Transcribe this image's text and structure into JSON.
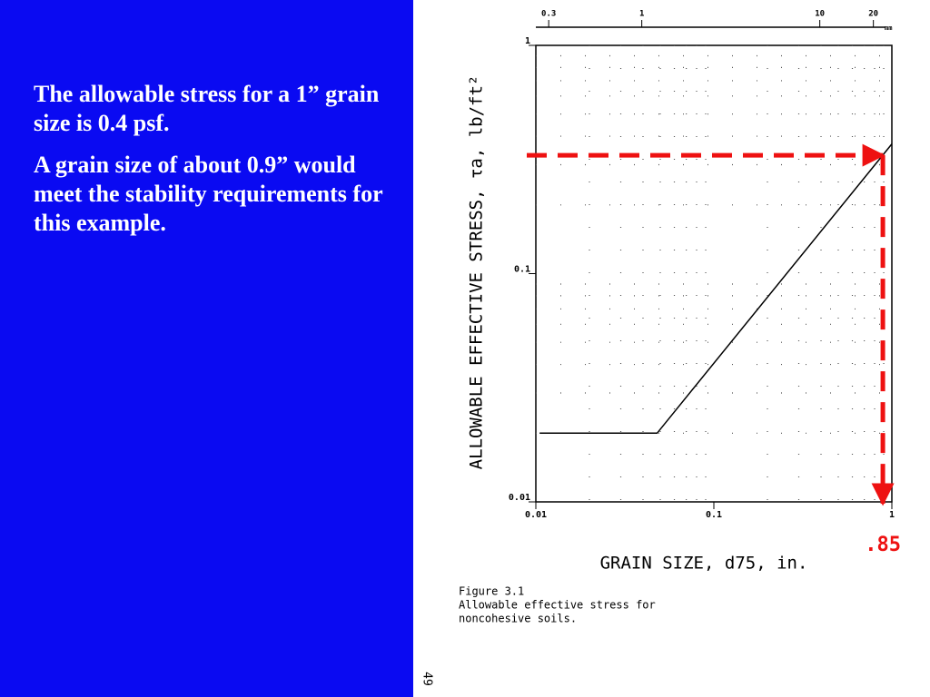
{
  "slide": {
    "paragraphs": [
      "The allowable stress for a 1” grain size is 0.4 psf.",
      "A grain size of about 0.9” would meet the stability requirements for this example."
    ],
    "page_number": "49"
  },
  "chart_data": {
    "type": "line",
    "log_x": true,
    "log_y": true,
    "grid": "dotted",
    "ylabel": "ALLOWABLE EFFECTIVE STRESS, τa, lb/ft²",
    "xlabel": "GRAIN SIZE, d75, in.",
    "caption": [
      "Figure 3.1",
      "Allowable effective stress for",
      "noncohesive soils."
    ],
    "xlim": [
      0.01,
      1
    ],
    "xticks": [
      0.01,
      0.1,
      1
    ],
    "ylim": [
      0.01,
      1
    ],
    "yticks": [
      0.01,
      0.1,
      1
    ],
    "x2lim": [
      0.254,
      25.4
    ],
    "x2ticks": [
      0.3,
      1,
      10,
      20
    ],
    "x2unit": "mm",
    "series": [
      {
        "color": "#000000",
        "x": [
          0.0105,
          0.048,
          1
        ],
        "values": [
          0.02,
          0.02,
          0.37
        ]
      }
    ],
    "annotation": {
      "text": ".85",
      "x": 0.89,
      "y": 0.33,
      "color": "#ee1111"
    }
  }
}
